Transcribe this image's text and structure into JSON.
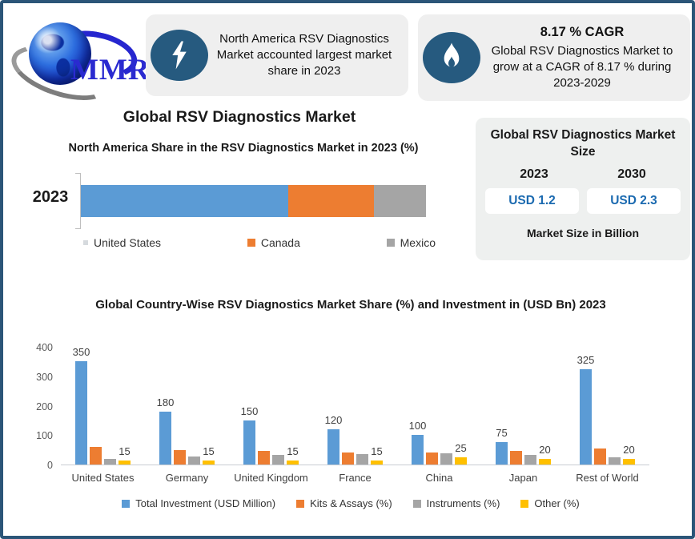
{
  "logo": {
    "text": "MMR"
  },
  "highlight_cards": [
    {
      "icon": "lightning-icon",
      "text": "North America RSV Diagnostics Market accounted largest market share in 2023"
    },
    {
      "icon": "flame-icon",
      "title": "8.17 % CAGR",
      "text": "Global RSV Diagnostics Market to grow at a CAGR of 8.17 % during 2023-2029"
    }
  ],
  "section": {
    "title": "Global RSV Diagnostics Market"
  },
  "market_size_card": {
    "title": "Global RSV Diagnostics Market Size",
    "years": [
      "2023",
      "2030"
    ],
    "values": [
      "USD 1.2",
      "USD 2.3"
    ],
    "footer": "Market Size in Billion"
  },
  "colors": {
    "border": "#2b5578",
    "card_bg": "#efefef",
    "icon_circle": "#265a7f",
    "usd_value_blue": "#1b6ab0",
    "series_blue": "#5B9BD5",
    "series_orange": "#ED7D31",
    "series_gray": "#A5A5A5",
    "series_yellow": "#FFC000"
  },
  "chart_data": [
    {
      "type": "bar",
      "orientation": "horizontal-stacked",
      "title": "North America Share in the RSV Diagnostics Market in 2023 (%)",
      "categories": [
        "2023"
      ],
      "series": [
        {
          "name": "United States",
          "color": "#5B9BD5",
          "values": [
            60
          ]
        },
        {
          "name": "Canada",
          "color": "#ED7D31",
          "values": [
            25
          ]
        },
        {
          "name": "Mexico",
          "color": "#A5A5A5",
          "values": [
            15
          ]
        }
      ],
      "xlim": [
        0,
        100
      ],
      "grid": false,
      "legend_position": "bottom"
    },
    {
      "type": "bar",
      "orientation": "vertical-grouped",
      "title": "Global Country-Wise RSV Diagnostics Market Share (%) and Investment in (USD Bn) 2023",
      "categories": [
        "United States",
        "Germany",
        "United Kingdom",
        "France",
        "China",
        "Japan",
        "Rest of World"
      ],
      "series": [
        {
          "name": "Total Investment (USD Million)",
          "color": "#5B9BD5",
          "values": [
            350,
            180,
            150,
            120,
            100,
            75,
            325
          ],
          "labeled": true
        },
        {
          "name": "Kits & Assays (%)",
          "color": "#ED7D31",
          "values": [
            60,
            50,
            45,
            42,
            40,
            45,
            55
          ],
          "labeled": false
        },
        {
          "name": "Instruments (%)",
          "color": "#A5A5A5",
          "values": [
            20,
            28,
            32,
            35,
            38,
            32,
            25
          ],
          "labeled": false
        },
        {
          "name": "Other (%)",
          "color": "#FFC000",
          "values": [
            15,
            15,
            15,
            15,
            25,
            20,
            20
          ],
          "labeled": true
        }
      ],
      "ylim": [
        0,
        400
      ],
      "yticks": [
        0,
        100,
        200,
        300,
        400
      ],
      "grid": false,
      "legend_position": "bottom"
    }
  ]
}
